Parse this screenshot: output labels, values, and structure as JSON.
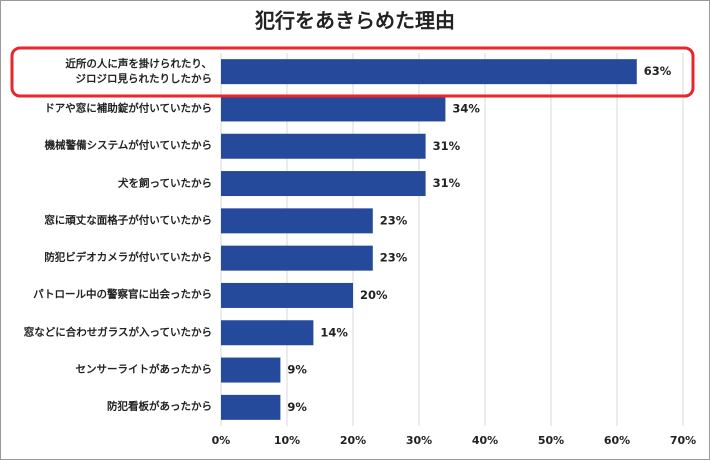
{
  "chart_data": {
    "type": "bar",
    "orientation": "horizontal",
    "title": "犯行をあきらめた理由",
    "categories": [
      "近所の人に声を掛けられたり、\nジロジロ見られたりしたから",
      "ドアや窓に補助錠が付いていたから",
      "機械警備システムが付いていたから",
      "犬を飼っていたから",
      "窓に頑丈な面格子が付いていたから",
      "防犯ビデオカメラが付いていたから",
      "パトロール中の警察官に出会ったから",
      "窓などに合わせガラスが入っていたから",
      "センサーライトがあったから",
      "防犯看板があったから"
    ],
    "values": [
      63,
      34,
      31,
      31,
      23,
      23,
      20,
      14,
      9,
      9
    ],
    "value_labels": [
      "63%",
      "34%",
      "31%",
      "31%",
      "23%",
      "23%",
      "20%",
      "14%",
      "9%",
      "9%"
    ],
    "color": "#264a9b",
    "xlim": [
      0,
      70
    ],
    "xticks": [
      {
        "value": 0,
        "label": "0%"
      },
      {
        "value": 10,
        "label": "10%"
      },
      {
        "value": 20,
        "label": "20%"
      },
      {
        "value": 30,
        "label": "30%"
      },
      {
        "value": 40,
        "label": "40%"
      },
      {
        "value": 50,
        "label": "50%"
      },
      {
        "value": 60,
        "label": "60%"
      },
      {
        "value": 70,
        "label": "70%"
      }
    ],
    "grid": true
  }
}
